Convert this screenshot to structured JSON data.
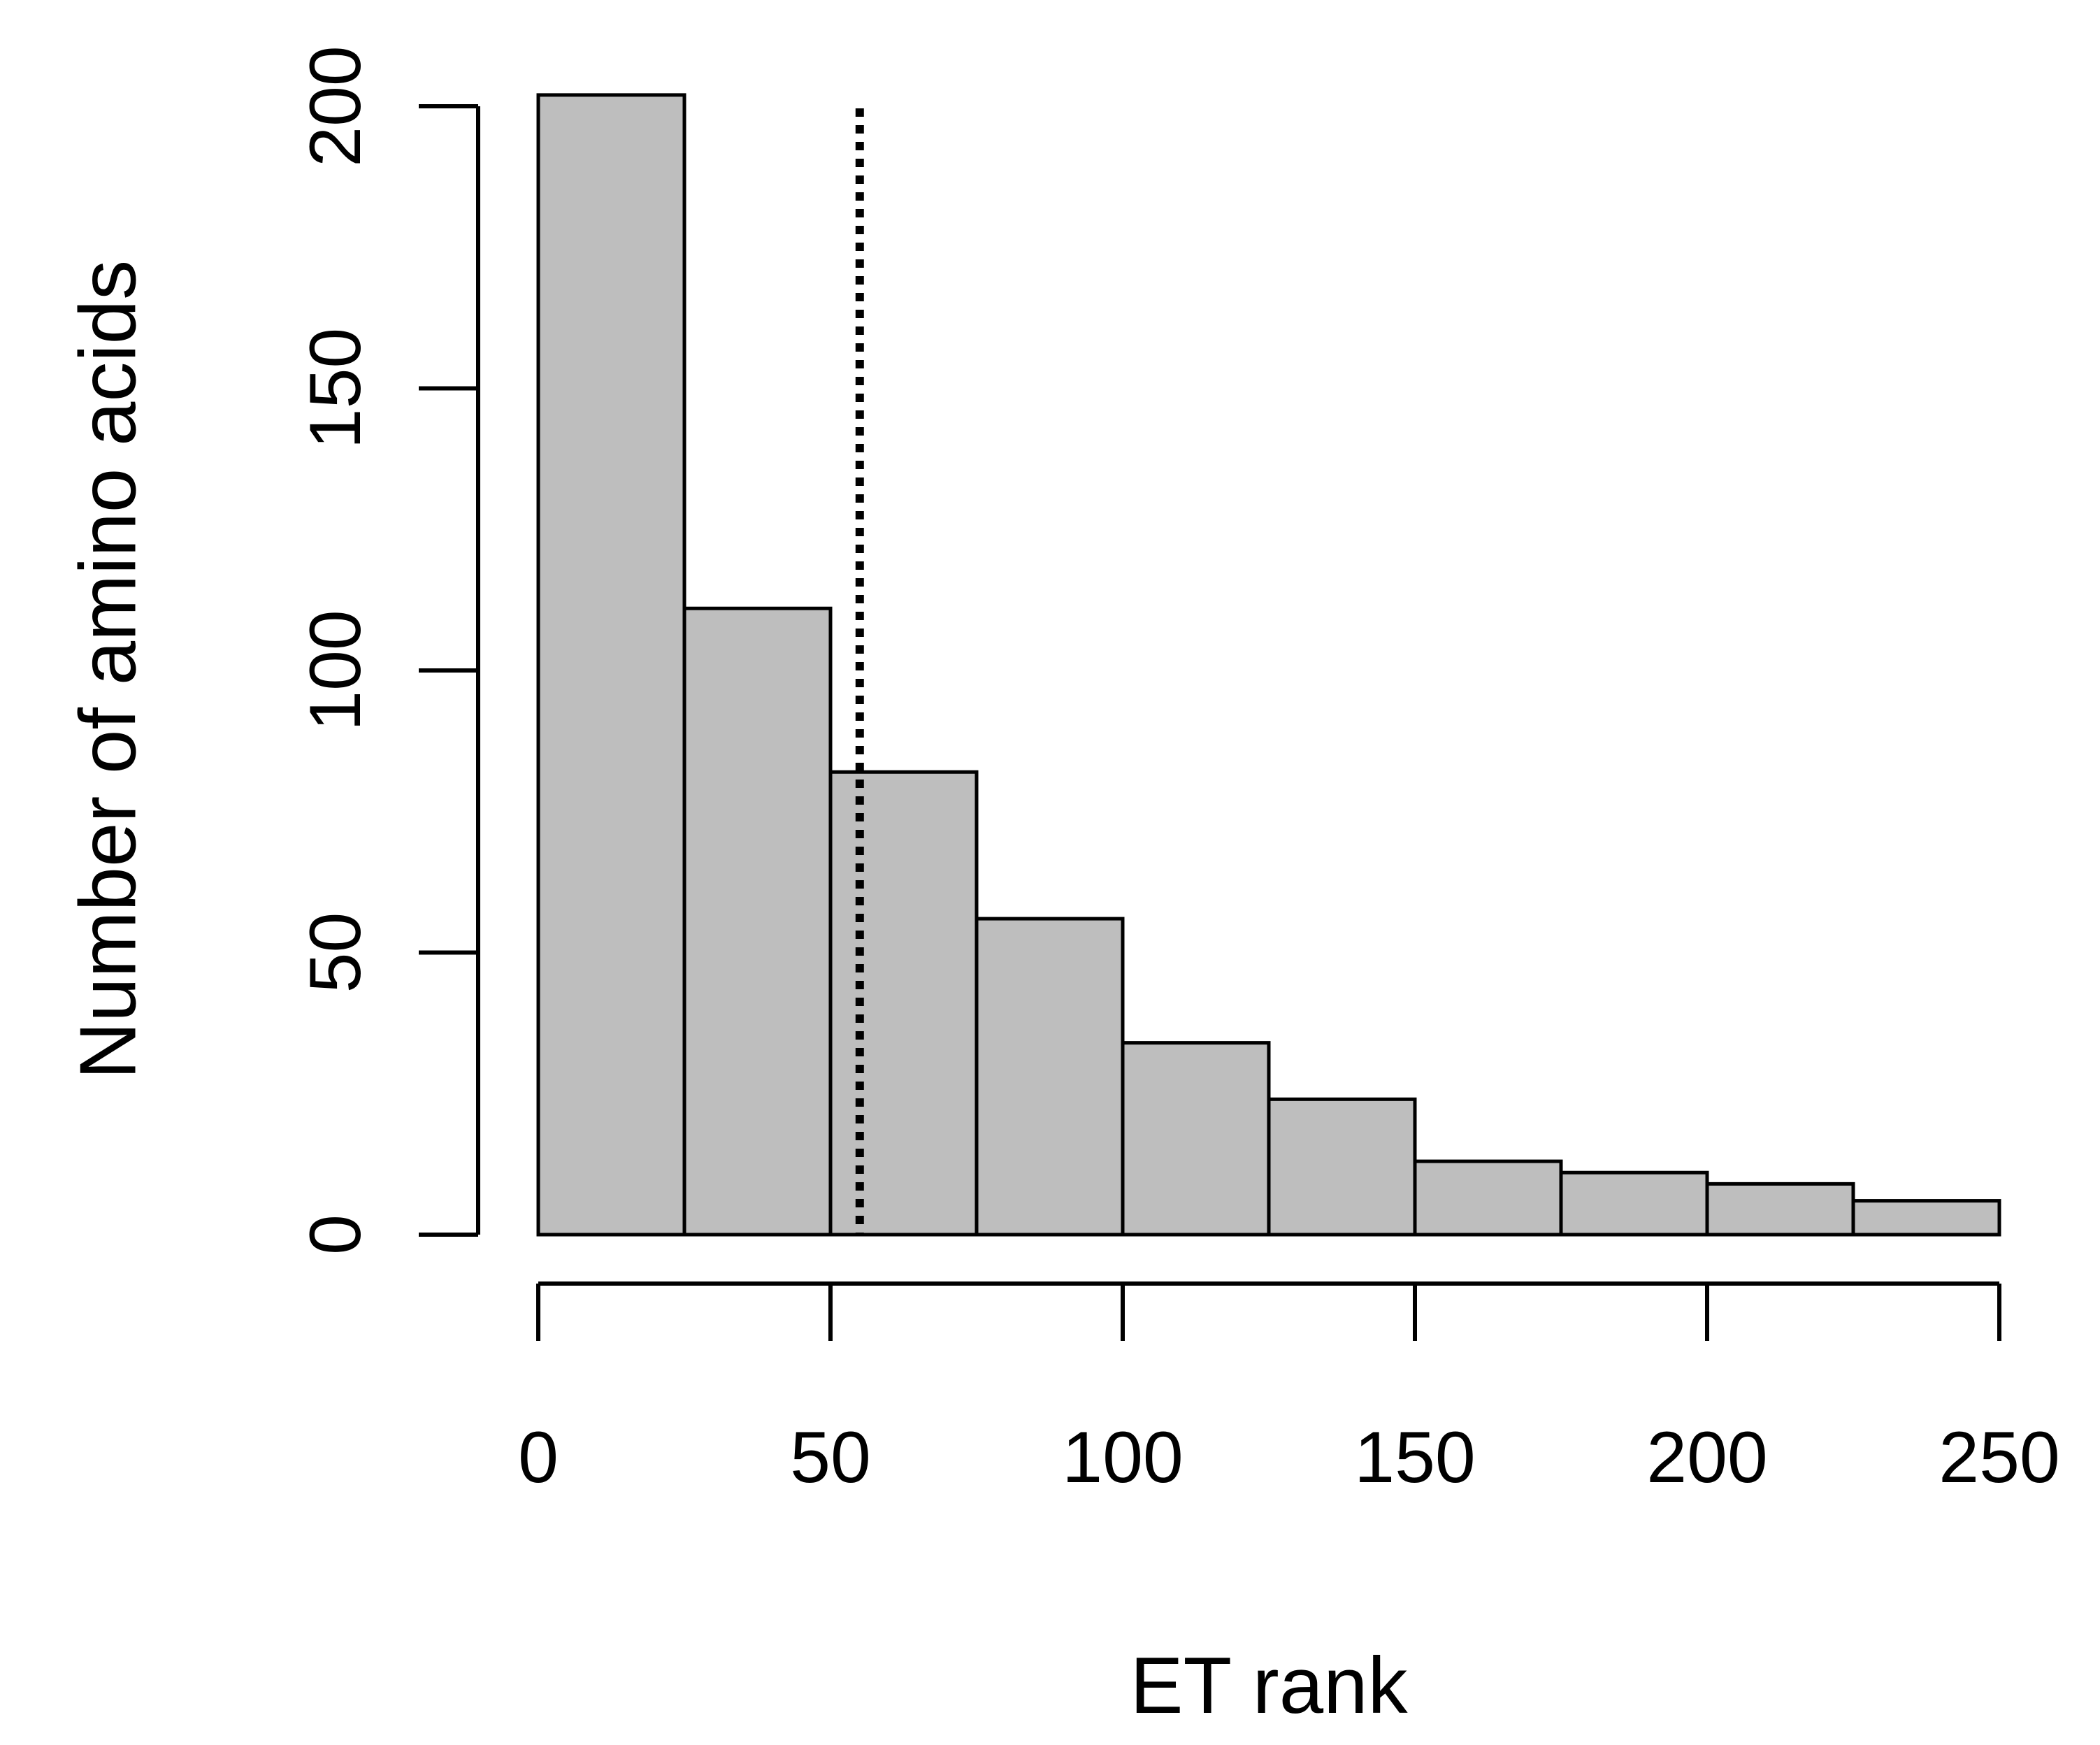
{
  "chart_data": {
    "type": "bar",
    "subtype": "histogram",
    "title": "",
    "xlabel": "ET rank",
    "ylabel": "Number of amino acids",
    "bins": [
      {
        "start": 0,
        "end": 25,
        "count": 202
      },
      {
        "start": 25,
        "end": 50,
        "count": 111
      },
      {
        "start": 50,
        "end": 75,
        "count": 82
      },
      {
        "start": 75,
        "end": 100,
        "count": 56
      },
      {
        "start": 100,
        "end": 125,
        "count": 34
      },
      {
        "start": 125,
        "end": 150,
        "count": 24
      },
      {
        "start": 150,
        "end": 175,
        "count": 13
      },
      {
        "start": 175,
        "end": 200,
        "count": 11
      },
      {
        "start": 200,
        "end": 225,
        "count": 9
      },
      {
        "start": 225,
        "end": 250,
        "count": 6
      }
    ],
    "xlim": [
      0,
      250
    ],
    "ylim": [
      0,
      200
    ],
    "x_ticks": [
      "0",
      "50",
      "100",
      "150",
      "200",
      "250"
    ],
    "y_ticks": [
      "0",
      "50",
      "100",
      "150",
      "200"
    ],
    "reference_line": {
      "x": 55,
      "style": "dotted"
    },
    "grid": false,
    "legend": "none",
    "colors": {
      "bar_fill": "#bebebe",
      "bar_edge": "#000000",
      "axis": "#000000"
    }
  }
}
